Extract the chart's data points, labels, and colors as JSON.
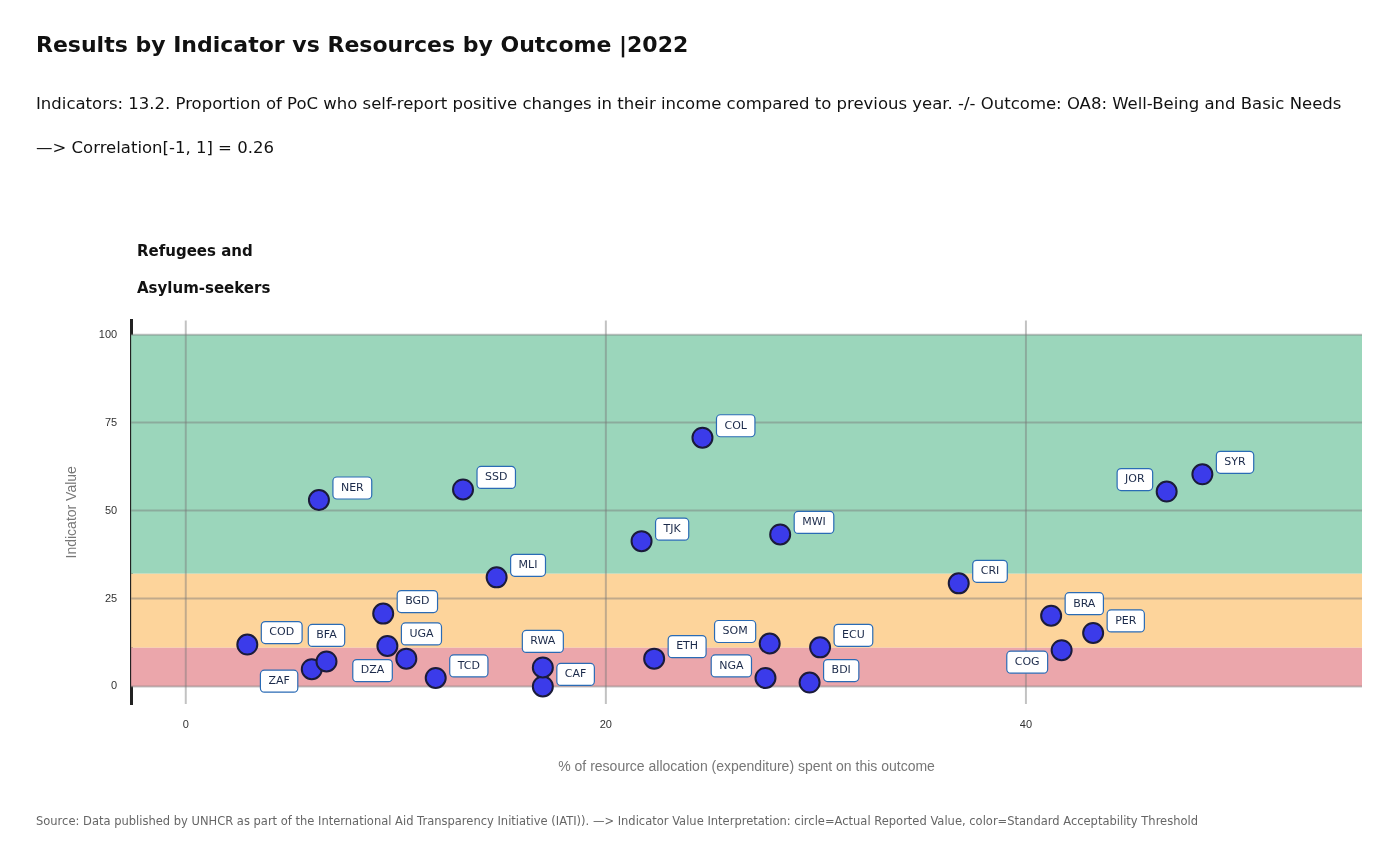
{
  "chart_data": {
    "type": "scatter",
    "title": "Results  by Indicator  vs Resources  by Outcome |2022",
    "subtitle": "Indicators: 13.2. Proportion of PoC who self-report positive changes in their income compared to previous year. -/- Outcome: OA8: Well-Being and Basic Needs",
    "xlabel": "% of resource allocation (expenditure) spent on this outcome",
    "ylabel": "Indicator Value",
    "x": [
      6.34,
      13.2,
      24.6,
      21.7,
      28.3,
      14.8,
      9.4,
      9.6,
      10.5,
      11.9,
      17.0,
      17.0,
      22.3,
      27.8,
      27.6,
      29.7,
      30.2,
      36.8,
      41.2,
      41.7,
      43.2,
      46.7,
      48.4,
      2.93,
      6.0,
      6.7
    ],
    "series": [
      {
        "color": "#3b3bea",
        "values": [
          53.0,
          56.0,
          70.7,
          41.3,
          43.2,
          31.0,
          20.7,
          11.5,
          7.9,
          2.4,
          0,
          5.4,
          7.9,
          12.2,
          2.4,
          1.1,
          11.1,
          29.3,
          20.1,
          10.3,
          15.2,
          55.4,
          60.3,
          11.9,
          4.9,
          7.1
        ]
      }
    ],
    "marker": "circle",
    "xlim": [
      -2.6,
      56
    ],
    "ylim": [
      -5,
      104
    ],
    "xticks": [
      0,
      20,
      40
    ],
    "yticks": [
      0,
      25,
      50,
      75,
      100
    ],
    "grid": true,
    "bands": [
      {
        "axis": "y",
        "from": 32,
        "to": 100,
        "color": "#9bd6bb"
      },
      {
        "axis": "y",
        "from": 11,
        "to": 32,
        "color": "#fdd49b"
      },
      {
        "axis": "y",
        "from": 0,
        "to": 11,
        "color": "#eba6ab"
      }
    ],
    "annotations": [
      "—> Correlation[-1, 1] = 0.26",
      "Refugees and Asylum-seekers",
      "Source: Data published by UNHCR as part of the International Aid Transparency Initiative (IATI)). —> Indicator  Value Interpretation: circle=Actual Reported Value, color=Standard Acceptability Threshold",
      {
        "text": "NER",
        "x": 6.34,
        "y": 53.0
      },
      {
        "text": "SSD",
        "x": 13.2,
        "y": 56.0
      },
      {
        "text": "COL",
        "x": 24.6,
        "y": 70.7
      },
      {
        "text": "TJK",
        "x": 21.7,
        "y": 41.3
      },
      {
        "text": "MWI",
        "x": 28.3,
        "y": 43.2
      },
      {
        "text": "MLI",
        "x": 14.8,
        "y": 31.0
      },
      {
        "text": "BGD",
        "x": 9.4,
        "y": 20.7
      },
      {
        "text": "UGA",
        "x": 9.6,
        "y": 11.5
      },
      {
        "text": "DZA",
        "x": 10.5,
        "y": 7.9
      },
      {
        "text": "TCD",
        "x": 11.9,
        "y": 2.4
      },
      {
        "text": "CAF",
        "x": 17.0,
        "y": 0
      },
      {
        "text": "RWA",
        "x": 17.0,
        "y": 5.4
      },
      {
        "text": "ETH",
        "x": 22.3,
        "y": 7.9
      },
      {
        "text": "SOM",
        "x": 27.8,
        "y": 12.2
      },
      {
        "text": "NGA",
        "x": 27.6,
        "y": 2.4
      },
      {
        "text": "BDI",
        "x": 29.7,
        "y": 1.1
      },
      {
        "text": "ECU",
        "x": 30.2,
        "y": 11.1
      },
      {
        "text": "CRI",
        "x": 36.8,
        "y": 29.3
      },
      {
        "text": "BRA",
        "x": 41.2,
        "y": 20.1
      },
      {
        "text": "COG",
        "x": 41.7,
        "y": 10.3
      },
      {
        "text": "PER",
        "x": 43.2,
        "y": 15.2
      },
      {
        "text": "JOR",
        "x": 46.7,
        "y": 55.4
      },
      {
        "text": "SYR",
        "x": 48.4,
        "y": 60.3
      },
      {
        "text": "COD",
        "x": 2.93,
        "y": 11.9
      },
      {
        "text": "ZAF",
        "x": 6.0,
        "y": 4.9
      },
      {
        "text": "BFA",
        "x": 6.7,
        "y": 7.1
      }
    ]
  }
}
